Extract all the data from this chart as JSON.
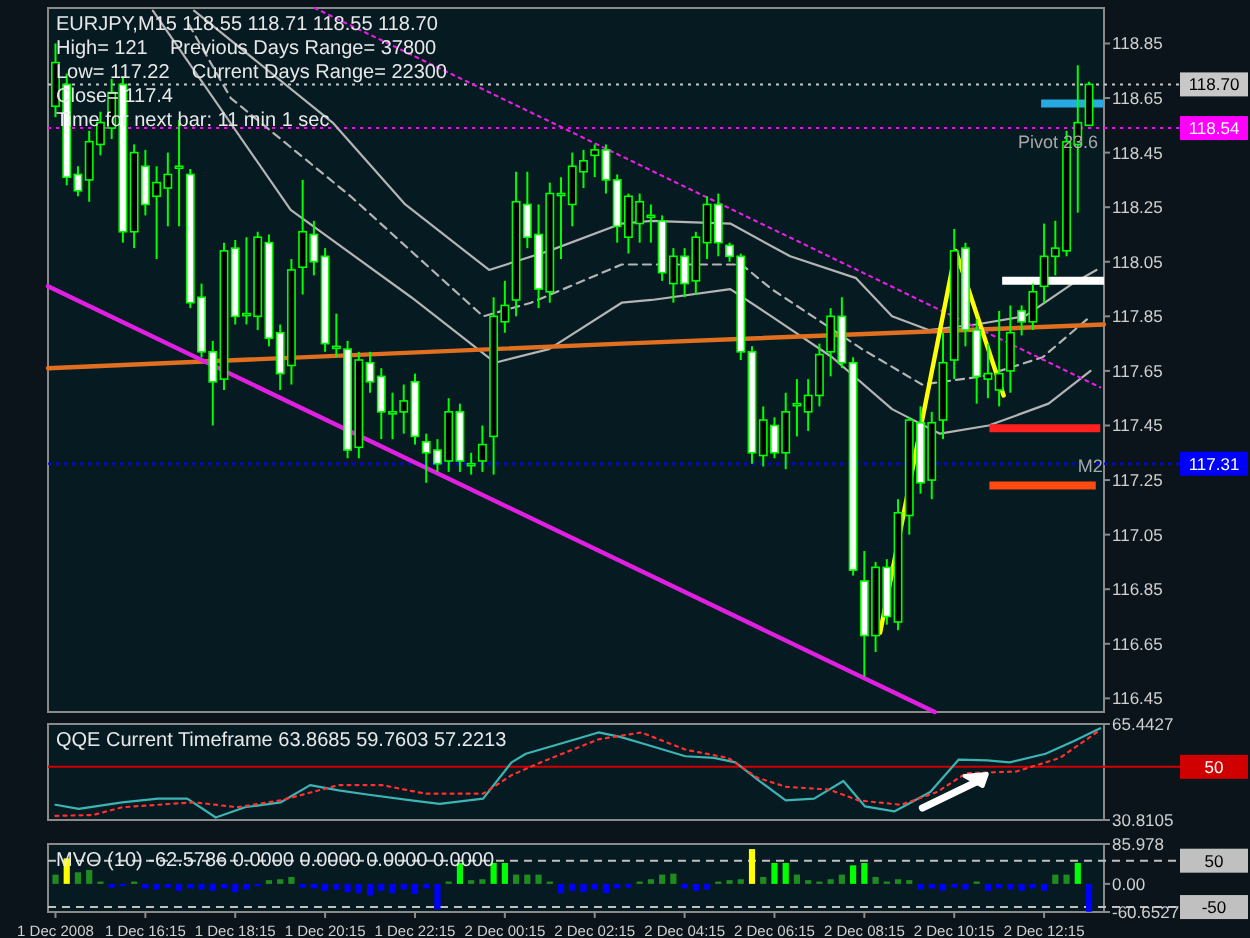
{
  "chart_data": [
    {
      "type": "candlestick",
      "title": "EURJPY,M15 118.55 118.71 118.55 118.70",
      "tick_labels": "y",
      "color": "#00ff00",
      "annotations": [
        "High= 121    Previous Days Range= 37800",
        "Low= 117.22    Current Days Range= 22300",
        "Close= 117.4",
        "Time for next bar: 11 min 1 sec",
        {
          "text": "Pivot 23.6",
          "y": 118.54
        },
        {
          "text": "M2",
          "x": "2008-12-02T13:00",
          "y": 117.28
        }
      ],
      "xlim": [
        "2008-12-01T14:05",
        "2008-12-02T13:35"
      ],
      "ylim": [
        116.4,
        118.98
      ],
      "yticks": [
        118.85,
        118.65,
        118.45,
        118.25,
        118.05,
        117.85,
        117.65,
        117.45,
        117.25,
        117.05,
        116.85,
        116.65,
        116.45
      ],
      "x": [
        "2008-12-01T14:15",
        "2008-12-01T14:30",
        "2008-12-01T14:45",
        "2008-12-01T15:00",
        "2008-12-01T15:15",
        "2008-12-01T15:30",
        "2008-12-01T15:45",
        "2008-12-01T16:00",
        "2008-12-01T16:15",
        "2008-12-01T16:30",
        "2008-12-01T16:45",
        "2008-12-01T17:00",
        "2008-12-01T17:15",
        "2008-12-01T17:30",
        "2008-12-01T17:45",
        "2008-12-01T18:00",
        "2008-12-01T18:15",
        "2008-12-01T18:30",
        "2008-12-01T18:45",
        "2008-12-01T19:00",
        "2008-12-01T19:15",
        "2008-12-01T19:30",
        "2008-12-01T19:45",
        "2008-12-01T20:00",
        "2008-12-01T20:15",
        "2008-12-01T20:30",
        "2008-12-01T20:45",
        "2008-12-01T21:00",
        "2008-12-01T21:15",
        "2008-12-01T21:30",
        "2008-12-01T21:45",
        "2008-12-01T22:00",
        "2008-12-01T22:15",
        "2008-12-01T22:30",
        "2008-12-01T22:45",
        "2008-12-01T23:00",
        "2008-12-01T23:15",
        "2008-12-01T23:30",
        "2008-12-01T23:45",
        "2008-12-02T00:00",
        "2008-12-02T00:15",
        "2008-12-02T00:30",
        "2008-12-02T00:45",
        "2008-12-02T01:00",
        "2008-12-02T01:15",
        "2008-12-02T01:30",
        "2008-12-02T01:45",
        "2008-12-02T02:00",
        "2008-12-02T02:15",
        "2008-12-02T02:30",
        "2008-12-02T02:45",
        "2008-12-02T03:00",
        "2008-12-02T03:15",
        "2008-12-02T03:30",
        "2008-12-02T03:45",
        "2008-12-02T04:00",
        "2008-12-02T04:15",
        "2008-12-02T04:30",
        "2008-12-02T04:45",
        "2008-12-02T05:00",
        "2008-12-02T05:15",
        "2008-12-02T05:30",
        "2008-12-02T05:45",
        "2008-12-02T06:00",
        "2008-12-02T06:15",
        "2008-12-02T06:30",
        "2008-12-02T06:45",
        "2008-12-02T07:00",
        "2008-12-02T07:15",
        "2008-12-02T07:30",
        "2008-12-02T07:45",
        "2008-12-02T08:00",
        "2008-12-02T08:15",
        "2008-12-02T08:30",
        "2008-12-02T08:45",
        "2008-12-02T09:00",
        "2008-12-02T09:15",
        "2008-12-02T09:30",
        "2008-12-02T09:45",
        "2008-12-02T10:00",
        "2008-12-02T10:15",
        "2008-12-02T10:30",
        "2008-12-02T10:45",
        "2008-12-02T11:00",
        "2008-12-02T11:15",
        "2008-12-02T11:30",
        "2008-12-02T11:45",
        "2008-12-02T12:00",
        "2008-12-02T12:15",
        "2008-12-02T12:30",
        "2008-12-02T12:45",
        "2008-12-02T13:00",
        "2008-12-02T13:15"
      ],
      "ohlc": [
        [
          118.62,
          118.85,
          118.58,
          118.78
        ],
        [
          118.7,
          118.74,
          118.33,
          118.36
        ],
        [
          118.37,
          118.4,
          118.29,
          118.31
        ],
        [
          118.35,
          118.53,
          118.27,
          118.49
        ],
        [
          118.48,
          118.6,
          118.44,
          118.56
        ],
        [
          118.54,
          118.72,
          118.5,
          118.67
        ],
        [
          118.7,
          118.73,
          118.12,
          118.16
        ],
        [
          118.16,
          118.48,
          118.1,
          118.45
        ],
        [
          118.4,
          118.46,
          118.22,
          118.26
        ],
        [
          118.29,
          118.4,
          118.06,
          118.34
        ],
        [
          118.32,
          118.45,
          118.18,
          118.37
        ],
        [
          118.4,
          118.57,
          118.18,
          118.4
        ],
        [
          118.37,
          118.39,
          117.88,
          117.9
        ],
        [
          117.92,
          117.97,
          117.7,
          117.72
        ],
        [
          117.72,
          117.76,
          117.45,
          117.61
        ],
        [
          117.62,
          118.12,
          117.58,
          118.09
        ],
        [
          118.1,
          118.13,
          117.82,
          117.85
        ],
        [
          117.86,
          118.14,
          117.82,
          117.86
        ],
        [
          117.85,
          118.16,
          117.8,
          118.14
        ],
        [
          118.12,
          118.15,
          117.74,
          117.77
        ],
        [
          117.79,
          117.82,
          117.58,
          117.64
        ],
        [
          117.67,
          118.06,
          117.6,
          118.02
        ],
        [
          118.03,
          118.35,
          117.93,
          118.16
        ],
        [
          118.15,
          118.2,
          118.0,
          118.05
        ],
        [
          118.07,
          118.1,
          117.72,
          117.75
        ],
        [
          117.74,
          117.86,
          117.7,
          117.74
        ],
        [
          117.73,
          117.76,
          117.33,
          117.36
        ],
        [
          117.37,
          117.72,
          117.33,
          117.69
        ],
        [
          117.68,
          117.72,
          117.57,
          117.61
        ],
        [
          117.63,
          117.66,
          117.4,
          117.5
        ],
        [
          117.5,
          117.57,
          117.4,
          117.5
        ],
        [
          117.5,
          117.6,
          117.42,
          117.54
        ],
        [
          117.61,
          117.64,
          117.38,
          117.41
        ],
        [
          117.39,
          117.42,
          117.24,
          117.35
        ],
        [
          117.36,
          117.4,
          117.28,
          117.31
        ],
        [
          117.32,
          117.55,
          117.28,
          117.5
        ],
        [
          117.5,
          117.53,
          117.28,
          117.32
        ],
        [
          117.31,
          117.35,
          117.27,
          117.31
        ],
        [
          117.32,
          117.45,
          117.28,
          117.38
        ],
        [
          117.41,
          117.92,
          117.27,
          117.85
        ],
        [
          117.83,
          117.98,
          117.79,
          117.89
        ],
        [
          117.91,
          118.38,
          117.85,
          118.27
        ],
        [
          118.26,
          118.38,
          118.1,
          118.14
        ],
        [
          118.15,
          118.26,
          117.88,
          117.95
        ],
        [
          117.94,
          118.34,
          117.9,
          118.3
        ],
        [
          118.3,
          118.36,
          118.06,
          118.3
        ],
        [
          118.26,
          118.45,
          118.18,
          118.4
        ],
        [
          118.38,
          118.46,
          118.32,
          118.42
        ],
        [
          118.44,
          118.48,
          118.36,
          118.46
        ],
        [
          118.46,
          118.48,
          118.3,
          118.35
        ],
        [
          118.35,
          118.37,
          118.12,
          118.18
        ],
        [
          118.14,
          118.3,
          118.08,
          118.29
        ],
        [
          118.19,
          118.3,
          118.12,
          118.27
        ],
        [
          118.22,
          118.26,
          118.12,
          118.22
        ],
        [
          118.2,
          118.22,
          117.98,
          118.01
        ],
        [
          117.97,
          118.1,
          117.9,
          118.07
        ],
        [
          118.07,
          118.1,
          117.92,
          117.97
        ],
        [
          117.98,
          118.16,
          117.93,
          118.14
        ],
        [
          118.12,
          118.29,
          118.06,
          118.26
        ],
        [
          118.26,
          118.3,
          118.07,
          118.12
        ],
        [
          118.11,
          118.12,
          118.05,
          118.07
        ],
        [
          118.07,
          118.08,
          117.69,
          117.72
        ],
        [
          117.72,
          117.74,
          117.31,
          117.35
        ],
        [
          117.34,
          117.52,
          117.3,
          117.47
        ],
        [
          117.45,
          117.48,
          117.33,
          117.35
        ],
        [
          117.35,
          117.57,
          117.29,
          117.5
        ],
        [
          117.53,
          117.62,
          117.41,
          117.53
        ],
        [
          117.5,
          117.62,
          117.43,
          117.56
        ],
        [
          117.56,
          117.75,
          117.52,
          117.71
        ],
        [
          117.72,
          117.88,
          117.63,
          117.85
        ],
        [
          117.85,
          117.92,
          117.66,
          117.68
        ],
        [
          117.68,
          117.7,
          116.9,
          116.92
        ],
        [
          116.88,
          116.99,
          116.53,
          116.68
        ],
        [
          116.68,
          116.95,
          116.62,
          116.93
        ],
        [
          116.93,
          116.96,
          116.72,
          116.75
        ],
        [
          116.73,
          117.18,
          116.7,
          117.13
        ],
        [
          117.12,
          117.48,
          117.05,
          117.47
        ],
        [
          117.46,
          117.52,
          117.2,
          117.24
        ],
        [
          117.25,
          117.5,
          117.18,
          117.46
        ],
        [
          117.47,
          117.79,
          117.4,
          117.68
        ],
        [
          117.69,
          118.17,
          117.62,
          118.09
        ],
        [
          118.1,
          118.12,
          117.74,
          117.8
        ],
        [
          117.8,
          117.84,
          117.53,
          117.63
        ],
        [
          117.62,
          117.75,
          117.55,
          117.64
        ],
        [
          117.58,
          117.87,
          117.52,
          117.64
        ],
        [
          117.65,
          117.89,
          117.57,
          117.79
        ],
        [
          117.87,
          117.89,
          117.78,
          117.83
        ],
        [
          117.83,
          117.97,
          117.8,
          117.94
        ],
        [
          117.96,
          118.19,
          117.9,
          118.07
        ],
        [
          118.07,
          118.2,
          118.0,
          118.1
        ],
        [
          118.09,
          118.53,
          118.07,
          118.49
        ],
        [
          118.48,
          118.77,
          118.23,
          118.56
        ],
        [
          118.55,
          118.71,
          118.55,
          118.7
        ]
      ],
      "series": [
        {
          "type": "line",
          "color": "#b4b4b4",
          "x": [
            "2008-12-01T17:20",
            "2008-12-01T20:25",
            "2008-12-01T22:02",
            "2008-12-01T23:54",
            "2008-12-02T01:14",
            "2008-12-02T02:51",
            "2008-12-02T03:31",
            "2008-12-02T05:16",
            "2008-12-02T06:36",
            "2008-12-02T08:04",
            "2008-12-02T08:52",
            "2008-12-02T09:41",
            "2008-12-02T10:44",
            "2008-12-02T11:49",
            "2008-12-02T12:53",
            "2008-12-02T13:25"
          ],
          "values": [
            118.97,
            118.56,
            118.26,
            118.02,
            118.09,
            118.19,
            118.2,
            118.19,
            118.07,
            117.99,
            117.85,
            117.8,
            117.82,
            117.85,
            117.97,
            118.02
          ]
        },
        {
          "type": "line",
          "color": "#b4b4b4",
          "line_style": "dashed",
          "x": [
            "2008-12-01T17:13",
            "2008-12-01T18:09",
            "2008-12-01T20:49",
            "2008-12-01T23:46",
            "2008-12-02T00:50",
            "2008-12-02T02:51",
            "2008-12-02T05:31",
            "2008-12-02T06:11",
            "2008-12-02T08:12",
            "2008-12-02T09:32",
            "2008-12-02T10:53",
            "2008-12-02T12:13",
            "2008-12-02T13:17"
          ],
          "values": [
            118.92,
            118.65,
            118.29,
            117.85,
            117.9,
            118.04,
            118.04,
            117.95,
            117.73,
            117.6,
            117.63,
            117.7,
            117.85
          ]
        },
        {
          "type": "line",
          "color": "#b4b4b4",
          "x": [
            "2008-12-01T16:25",
            "2008-12-01T19:29",
            "2008-12-01T22:10",
            "2008-12-02T00:02",
            "2008-12-02T01:14",
            "2008-12-02T02:51",
            "2008-12-02T03:31",
            "2008-12-02T05:16",
            "2008-12-02T06:11",
            "2008-12-02T07:32",
            "2008-12-02T08:52",
            "2008-12-02T09:56",
            "2008-12-02T11:01",
            "2008-12-02T12:21",
            "2008-12-02T13:17"
          ],
          "values": [
            118.97,
            118.24,
            117.92,
            117.68,
            117.73,
            117.9,
            117.91,
            117.95,
            117.85,
            117.7,
            117.51,
            117.42,
            117.45,
            117.53,
            117.65
          ]
        },
        {
          "type": "line",
          "color": "#e07020",
          "x": [
            "2008-12-01T14:05",
            "2008-12-02T02:51",
            "2008-12-02T13:35"
          ],
          "values": [
            117.66,
            117.75,
            117.82
          ]
        },
        {
          "type": "line",
          "color": "#e020e0",
          "x": [
            "2008-12-01T14:05",
            "2008-12-02T09:49"
          ],
          "values": [
            117.96,
            116.4
          ]
        },
        {
          "type": "line",
          "color": "#e020e0",
          "line_style": "dotted",
          "x": [
            "2008-12-01T20:01",
            "2008-12-02T13:30"
          ],
          "values": [
            118.98,
            117.59
          ]
        },
        {
          "type": "line",
          "color": "#ffff00",
          "x": [
            "2008-12-02T08:36",
            "2008-12-02T10:17",
            "2008-12-02T11:21"
          ],
          "values": [
            116.69,
            118.09,
            117.56
          ]
        },
        {
          "type": "line",
          "color": "#29a9e1",
          "x": [
            "2008-12-02T12:11",
            "2008-12-02T13:35"
          ],
          "values": [
            118.63,
            118.63
          ]
        },
        {
          "type": "line",
          "color": "#ffffff",
          "x": [
            "2008-12-02T11:19",
            "2008-12-02T13:35"
          ],
          "values": [
            117.98,
            117.98
          ]
        },
        {
          "type": "line",
          "color": "#ff2020",
          "x": [
            "2008-12-02T11:02",
            "2008-12-02T13:30"
          ],
          "values": [
            117.44,
            117.44
          ]
        },
        {
          "type": "line",
          "color": "#ff4a10",
          "x": [
            "2008-12-02T11:02",
            "2008-12-02T13:24"
          ],
          "values": [
            117.23,
            117.23
          ]
        }
      ],
      "ref_lines": [
        {
          "axis": "y",
          "value": 118.7,
          "label": "118.70",
          "color": "#c8c8c8",
          "line_style": "dotted"
        },
        {
          "axis": "y",
          "value": 118.54,
          "label": "118.54",
          "color": "#ff00ff",
          "line_style": "dotted"
        },
        {
          "axis": "y",
          "value": 117.31,
          "label": "117.31",
          "color": "#0000ff",
          "line_style": "dotted"
        }
      ]
    },
    {
      "type": "line",
      "title": "QQE Current Timeframe 63.8685 59.7603 57.2213",
      "tick_labels": "y",
      "xlim": [
        "2008-12-01T14:05",
        "2008-12-02T13:35"
      ],
      "ylim": [
        30.8105,
        65.4427
      ],
      "yticks": [
        65.4427,
        30.8105
      ],
      "series": [
        {
          "color": "#3cb4b4",
          "x": [
            "2008-12-01T14:15",
            "2008-12-01T14:46",
            "2008-12-01T15:44",
            "2008-12-01T16:32",
            "2008-12-01T17:11",
            "2008-12-01T17:49",
            "2008-12-01T18:28",
            "2008-12-01T19:16",
            "2008-12-01T19:55",
            "2008-12-01T20:33",
            "2008-12-01T21:11",
            "2008-12-01T22:10",
            "2008-12-01T22:48",
            "2008-12-01T23:46",
            "2008-12-02T00:24",
            "2008-12-02T00:43",
            "2008-12-02T01:22",
            "2008-12-02T02:20",
            "2008-12-02T02:49",
            "2008-12-02T03:27",
            "2008-12-02T04:16",
            "2008-12-02T04:54",
            "2008-12-02T05:23",
            "2008-12-02T05:52",
            "2008-12-02T06:30",
            "2008-12-02T07:08",
            "2008-12-02T07:47",
            "2008-12-02T08:16",
            "2008-12-02T08:55",
            "2008-12-02T09:43",
            "2008-12-02T10:21",
            "2008-12-02T10:59",
            "2008-12-02T11:29",
            "2008-12-02T12:17",
            "2008-12-02T12:55",
            "2008-12-02T13:30"
          ],
          "values": [
            36.3,
            34.8,
            37.2,
            38.5,
            38.5,
            31.7,
            35.4,
            37.2,
            43.4,
            41.5,
            40.0,
            37.9,
            36.6,
            38.5,
            51.6,
            54.7,
            57.8,
            62.4,
            60.8,
            57.8,
            53.8,
            53.2,
            51.6,
            45.5,
            37.9,
            38.5,
            44.9,
            35.7,
            33.9,
            40.9,
            52.6,
            52.3,
            51.6,
            54.7,
            59.3,
            63.9
          ]
        },
        {
          "color": "#ff3030",
          "line_style": "dotted",
          "x": [
            "2008-12-01T14:15",
            "2008-12-01T15:05",
            "2008-12-01T15:44",
            "2008-12-01T17:20",
            "2008-12-01T18:18",
            "2008-12-01T19:16",
            "2008-12-01T20:33",
            "2008-12-01T21:31",
            "2008-12-01T22:29",
            "2008-12-01T23:46",
            "2008-12-02T00:24",
            "2008-12-02T01:03",
            "2008-12-02T02:20",
            "2008-12-02T03:17",
            "2008-12-02T04:16",
            "2008-12-02T05:13",
            "2008-12-02T05:52",
            "2008-12-02T06:30",
            "2008-12-02T07:28",
            "2008-12-02T08:07",
            "2008-12-02T09:04",
            "2008-12-02T09:52",
            "2008-12-02T10:31",
            "2008-12-02T11:38",
            "2008-12-02T12:36",
            "2008-12-02T13:30"
          ],
          "values": [
            32.3,
            32.6,
            35.4,
            37.2,
            35.4,
            37.9,
            43.4,
            43.4,
            40.3,
            40.3,
            47.0,
            51.6,
            59.9,
            62.4,
            56.2,
            53.2,
            46.1,
            42.8,
            41.8,
            37.9,
            36.3,
            40.9,
            47.7,
            48.3,
            53.2,
            63.3
          ]
        }
      ],
      "ref_lines": [
        {
          "axis": "y",
          "value": 50,
          "label": "50",
          "color": "#d00000"
        }
      ]
    },
    {
      "type": "bar",
      "title": "MVO (10) -62.5786 0.0000 0.0000 0.0000 0.0000",
      "xlim": [
        "2008-12-01T14:05",
        "2008-12-02T13:35"
      ],
      "xticks": [
        {
          "value": "2008-12-01T14:15",
          "label": "1 Dec 2008"
        },
        {
          "value": "2008-12-01T16:15",
          "label": "1 Dec 16:15"
        },
        {
          "value": "2008-12-01T18:15",
          "label": "1 Dec 18:15"
        },
        {
          "value": "2008-12-01T20:15",
          "label": "1 Dec 20:15"
        },
        {
          "value": "2008-12-01T22:15",
          "label": "1 Dec 22:15"
        },
        {
          "value": "2008-12-02T00:15",
          "label": "2 Dec 00:15"
        },
        {
          "value": "2008-12-02T02:15",
          "label": "2 Dec 02:15"
        },
        {
          "value": "2008-12-02T04:15",
          "label": "2 Dec 04:15"
        },
        {
          "value": "2008-12-02T06:15",
          "label": "2 Dec 06:15"
        },
        {
          "value": "2008-12-02T08:15",
          "label": "2 Dec 08:15"
        },
        {
          "value": "2008-12-02T10:15",
          "label": "2 Dec 10:15"
        },
        {
          "value": "2008-12-02T12:15",
          "label": "2 Dec 12:15"
        }
      ],
      "ylim": [
        -60.6527,
        85.978
      ],
      "yticks": [
        85.978,
        {
          "value": 0,
          "label": "0.00"
        },
        -60.6527
      ],
      "x": [
        "2008-12-01T14:15",
        "2008-12-01T14:30",
        "2008-12-01T14:45",
        "2008-12-01T15:00",
        "2008-12-01T15:15",
        "2008-12-01T15:30",
        "2008-12-01T15:45",
        "2008-12-01T16:00",
        "2008-12-01T16:15",
        "2008-12-01T16:30",
        "2008-12-01T16:45",
        "2008-12-01T17:00",
        "2008-12-01T17:15",
        "2008-12-01T17:30",
        "2008-12-01T17:45",
        "2008-12-01T18:00",
        "2008-12-01T18:15",
        "2008-12-01T18:30",
        "2008-12-01T18:45",
        "2008-12-01T19:00",
        "2008-12-01T19:15",
        "2008-12-01T19:30",
        "2008-12-01T19:45",
        "2008-12-01T20:00",
        "2008-12-01T20:15",
        "2008-12-01T20:30",
        "2008-12-01T20:45",
        "2008-12-01T21:00",
        "2008-12-01T21:15",
        "2008-12-01T21:30",
        "2008-12-01T21:45",
        "2008-12-01T22:00",
        "2008-12-01T22:15",
        "2008-12-01T22:30",
        "2008-12-01T22:45",
        "2008-12-01T23:00",
        "2008-12-01T23:15",
        "2008-12-01T23:30",
        "2008-12-01T23:45",
        "2008-12-02T00:00",
        "2008-12-02T00:15",
        "2008-12-02T00:30",
        "2008-12-02T00:45",
        "2008-12-02T01:00",
        "2008-12-02T01:15",
        "2008-12-02T01:30",
        "2008-12-02T01:45",
        "2008-12-02T02:00",
        "2008-12-02T02:15",
        "2008-12-02T02:30",
        "2008-12-02T02:45",
        "2008-12-02T03:00",
        "2008-12-02T03:15",
        "2008-12-02T03:30",
        "2008-12-02T03:45",
        "2008-12-02T04:00",
        "2008-12-02T04:15",
        "2008-12-02T04:30",
        "2008-12-02T04:45",
        "2008-12-02T05:00",
        "2008-12-02T05:15",
        "2008-12-02T05:30",
        "2008-12-02T05:45",
        "2008-12-02T06:00",
        "2008-12-02T06:15",
        "2008-12-02T06:30",
        "2008-12-02T06:45",
        "2008-12-02T07:00",
        "2008-12-02T07:15",
        "2008-12-02T07:30",
        "2008-12-02T07:45",
        "2008-12-02T08:00",
        "2008-12-02T08:15",
        "2008-12-02T08:30",
        "2008-12-02T08:45",
        "2008-12-02T09:00",
        "2008-12-02T09:15",
        "2008-12-02T09:30",
        "2008-12-02T09:45",
        "2008-12-02T10:00",
        "2008-12-02T10:15",
        "2008-12-02T10:30",
        "2008-12-02T10:45",
        "2008-12-02T11:00",
        "2008-12-02T11:15",
        "2008-12-02T11:30",
        "2008-12-02T11:45",
        "2008-12-02T12:00",
        "2008-12-02T12:15",
        "2008-12-02T12:30",
        "2008-12-02T12:45",
        "2008-12-02T13:00",
        "2008-12-02T13:15"
      ],
      "values": [
        20,
        55,
        25,
        30,
        5,
        -8,
        -5,
        5,
        -10,
        -12,
        -8,
        -15,
        -10,
        -12,
        -15,
        -10,
        -18,
        -12,
        -5,
        8,
        10,
        15,
        -8,
        -10,
        -15,
        -12,
        -18,
        -20,
        -25,
        -15,
        -20,
        -12,
        -22,
        -10,
        -55,
        5,
        45,
        8,
        10,
        45,
        45,
        20,
        20,
        20,
        5,
        -20,
        -15,
        -18,
        -12,
        -20,
        -10,
        -8,
        5,
        10,
        20,
        22,
        -10,
        -15,
        -12,
        5,
        8,
        10,
        75,
        15,
        45,
        45,
        20,
        8,
        5,
        10,
        20,
        40,
        45,
        15,
        5,
        10,
        8,
        -12,
        -10,
        -15,
        -8,
        -12,
        5,
        -15,
        -10,
        -12,
        -15,
        -10,
        -15,
        20,
        20,
        45,
        -60
      ],
      "colors": [
        "#1e8c1e",
        "#ffff00",
        "#1e8c1e",
        "#1e8c1e",
        "#1e8c1e",
        "#0000ff",
        "#0000ff",
        "#1e8c1e",
        "#0000ff",
        "#0000ff",
        "#0000ff",
        "#0000ff",
        "#0000ff",
        "#0000ff",
        "#0000ff",
        "#0000ff",
        "#0000ff",
        "#0000ff",
        "#0000ff",
        "#1e8c1e",
        "#1e8c1e",
        "#1e8c1e",
        "#0000ff",
        "#0000ff",
        "#0000ff",
        "#0000ff",
        "#0000ff",
        "#0000ff",
        "#0000ff",
        "#0000ff",
        "#0000ff",
        "#0000ff",
        "#0000ff",
        "#0000ff",
        "#0000ff",
        "#1e8c1e",
        "#00ff00",
        "#1e8c1e",
        "#1e8c1e",
        "#00ff00",
        "#00ff00",
        "#1e8c1e",
        "#1e8c1e",
        "#1e8c1e",
        "#1e8c1e",
        "#0000ff",
        "#0000ff",
        "#0000ff",
        "#0000ff",
        "#0000ff",
        "#0000ff",
        "#0000ff",
        "#1e8c1e",
        "#1e8c1e",
        "#1e8c1e",
        "#1e8c1e",
        "#0000ff",
        "#0000ff",
        "#0000ff",
        "#1e8c1e",
        "#1e8c1e",
        "#1e8c1e",
        "#ffff00",
        "#1e8c1e",
        "#00ff00",
        "#00ff00",
        "#1e8c1e",
        "#1e8c1e",
        "#1e8c1e",
        "#1e8c1e",
        "#1e8c1e",
        "#00ff00",
        "#00ff00",
        "#1e8c1e",
        "#1e8c1e",
        "#1e8c1e",
        "#1e8c1e",
        "#0000ff",
        "#0000ff",
        "#0000ff",
        "#0000ff",
        "#0000ff",
        "#1e8c1e",
        "#0000ff",
        "#0000ff",
        "#0000ff",
        "#0000ff",
        "#0000ff",
        "#0000ff",
        "#1e8c1e",
        "#1e8c1e",
        "#00ff00",
        "#0000ff"
      ],
      "ref_lines": [
        {
          "axis": "y",
          "value": 50,
          "label": "50",
          "color": "#c0c0c0",
          "line_style": "dashed"
        },
        {
          "axis": "y",
          "value": -50,
          "label": "-50",
          "color": "#c0c0c0",
          "line_style": "dashed"
        }
      ]
    }
  ]
}
